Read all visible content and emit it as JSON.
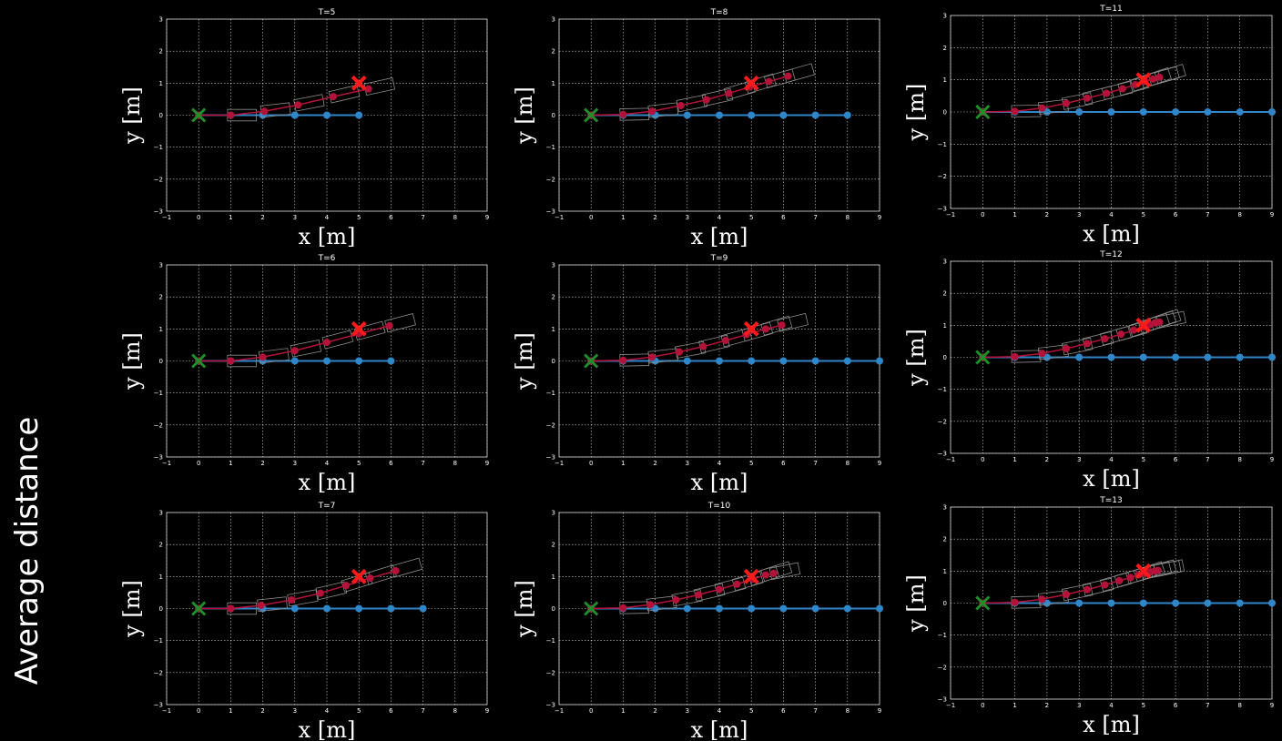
{
  "side_label": "Average distance",
  "colors": {
    "background": "#000000",
    "path": "#2f86c8",
    "trajectory": "#b5123a",
    "target": "#ff1a1a",
    "start": "#1f8f2a",
    "grid": "#ffffff",
    "boxes": "#8a8a8a"
  },
  "chart_data": [
    {
      "type": "line",
      "title": "T=5",
      "xlabel": "x [m]",
      "ylabel": "y [m]",
      "xlim": [
        -1,
        9
      ],
      "ylim": [
        -3,
        3
      ],
      "xticks": [
        "−1",
        "0",
        "1",
        "2",
        "3",
        "4",
        "5",
        "6",
        "7",
        "8",
        "9"
      ],
      "yticks": [
        "−3",
        "−2",
        "−1",
        "0",
        "1",
        "2",
        "3"
      ],
      "grid": true,
      "series": [
        {
          "values": [
            [
              0,
              0
            ],
            [
              1,
              0
            ],
            [
              2,
              0
            ],
            [
              3,
              0
            ],
            [
              4,
              0
            ],
            [
              5,
              0
            ]
          ]
        },
        {
          "values": [
            [
              0,
              0
            ],
            [
              1,
              0
            ],
            [
              2.05,
              0.12
            ],
            [
              3.1,
              0.32
            ],
            [
              4.2,
              0.58
            ],
            [
              5.3,
              0.82
            ]
          ]
        }
      ],
      "target": [
        5,
        1
      ],
      "start": [
        0,
        0
      ]
    },
    {
      "type": "line",
      "title": "T=6",
      "xlabel": "x [m]",
      "ylabel": "y [m]",
      "xlim": [
        -1,
        9
      ],
      "ylim": [
        -3,
        3
      ],
      "xticks": [
        "−1",
        "0",
        "1",
        "2",
        "3",
        "4",
        "5",
        "6",
        "7",
        "8",
        "9"
      ],
      "yticks": [
        "−3",
        "−2",
        "−1",
        "0",
        "1",
        "2",
        "3"
      ],
      "grid": true,
      "series": [
        {
          "values": [
            [
              0,
              0
            ],
            [
              1,
              0
            ],
            [
              2,
              0
            ],
            [
              3,
              0
            ],
            [
              4,
              0
            ],
            [
              5,
              0
            ],
            [
              6,
              0
            ]
          ]
        },
        {
          "values": [
            [
              0,
              0
            ],
            [
              1,
              0
            ],
            [
              2,
              0.12
            ],
            [
              3,
              0.32
            ],
            [
              4,
              0.58
            ],
            [
              5,
              0.85
            ],
            [
              5.95,
              1.1
            ]
          ]
        }
      ],
      "target": [
        5,
        1
      ],
      "start": [
        0,
        0
      ]
    },
    {
      "type": "line",
      "title": "T=7",
      "xlabel": "x [m]",
      "ylabel": "y [m]",
      "xlim": [
        -1,
        9
      ],
      "ylim": [
        -3,
        3
      ],
      "xticks": [
        "−1",
        "0",
        "1",
        "2",
        "3",
        "4",
        "5",
        "6",
        "7",
        "8",
        "9"
      ],
      "yticks": [
        "−3",
        "−2",
        "−1",
        "0",
        "1",
        "2",
        "3"
      ],
      "grid": true,
      "series": [
        {
          "values": [
            [
              0,
              0
            ],
            [
              1,
              0
            ],
            [
              2,
              0
            ],
            [
              3,
              0
            ],
            [
              4,
              0
            ],
            [
              5,
              0
            ],
            [
              6,
              0
            ],
            [
              7,
              0
            ]
          ]
        },
        {
          "values": [
            [
              0,
              0
            ],
            [
              1,
              0
            ],
            [
              1.95,
              0.1
            ],
            [
              2.9,
              0.27
            ],
            [
              3.8,
              0.48
            ],
            [
              4.6,
              0.72
            ],
            [
              5.35,
              0.95
            ],
            [
              6.15,
              1.18
            ]
          ]
        }
      ],
      "target": [
        5,
        1
      ],
      "start": [
        0,
        0
      ]
    },
    {
      "type": "line",
      "title": "T=8",
      "xlabel": "x [m]",
      "ylabel": "y [m]",
      "xlim": [
        -1,
        9
      ],
      "ylim": [
        -3,
        3
      ],
      "xticks": [
        "−1",
        "0",
        "1",
        "2",
        "3",
        "4",
        "5",
        "6",
        "7",
        "8",
        "9"
      ],
      "yticks": [
        "−3",
        "−2",
        "−1",
        "0",
        "1",
        "2",
        "3"
      ],
      "grid": true,
      "series": [
        {
          "values": [
            [
              0,
              0
            ],
            [
              1,
              0
            ],
            [
              2,
              0
            ],
            [
              3,
              0
            ],
            [
              4,
              0
            ],
            [
              5,
              0
            ],
            [
              6,
              0
            ],
            [
              7,
              0
            ],
            [
              8,
              0
            ]
          ]
        },
        {
          "values": [
            [
              0,
              0
            ],
            [
              1,
              0.02
            ],
            [
              1.9,
              0.12
            ],
            [
              2.8,
              0.3
            ],
            [
              3.6,
              0.48
            ],
            [
              4.3,
              0.68
            ],
            [
              4.95,
              0.88
            ],
            [
              5.55,
              1.05
            ],
            [
              6.15,
              1.22
            ]
          ]
        }
      ],
      "target": [
        5,
        1
      ],
      "start": [
        0,
        0
      ]
    },
    {
      "type": "line",
      "title": "T=9",
      "xlabel": "x [m]",
      "ylabel": "y [m]",
      "xlim": [
        -1,
        9
      ],
      "ylim": [
        -3,
        3
      ],
      "xticks": [
        "−1",
        "0",
        "1",
        "2",
        "3",
        "4",
        "5",
        "6",
        "7",
        "8",
        "9"
      ],
      "yticks": [
        "−3",
        "−2",
        "−1",
        "0",
        "1",
        "2",
        "3"
      ],
      "grid": true,
      "series": [
        {
          "values": [
            [
              0,
              0
            ],
            [
              1,
              0
            ],
            [
              2,
              0
            ],
            [
              3,
              0
            ],
            [
              4,
              0
            ],
            [
              5,
              0
            ],
            [
              6,
              0
            ],
            [
              7,
              0
            ],
            [
              8,
              0
            ],
            [
              9,
              0
            ]
          ]
        },
        {
          "values": [
            [
              0,
              0
            ],
            [
              1,
              0.02
            ],
            [
              1.9,
              0.12
            ],
            [
              2.75,
              0.28
            ],
            [
              3.5,
              0.45
            ],
            [
              4.2,
              0.64
            ],
            [
              4.85,
              0.82
            ],
            [
              5.45,
              1.0
            ],
            [
              5.95,
              1.12
            ]
          ]
        }
      ],
      "target": [
        5,
        1
      ],
      "start": [
        0,
        0
      ]
    },
    {
      "type": "line",
      "title": "T=10",
      "xlabel": "x [m]",
      "ylabel": "y [m]",
      "xlim": [
        -1,
        9
      ],
      "ylim": [
        -3,
        3
      ],
      "xticks": [
        "−1",
        "0",
        "1",
        "2",
        "3",
        "4",
        "5",
        "6",
        "7",
        "8",
        "9"
      ],
      "yticks": [
        "−3",
        "−2",
        "−1",
        "0",
        "1",
        "2",
        "3"
      ],
      "grid": true,
      "series": [
        {
          "values": [
            [
              0,
              0
            ],
            [
              1,
              0
            ],
            [
              2,
              0
            ],
            [
              3,
              0
            ],
            [
              4,
              0
            ],
            [
              5,
              0
            ],
            [
              6,
              0
            ],
            [
              7,
              0
            ],
            [
              8,
              0
            ],
            [
              9,
              0
            ]
          ]
        },
        {
          "values": [
            [
              0,
              0
            ],
            [
              1,
              0.02
            ],
            [
              1.85,
              0.12
            ],
            [
              2.65,
              0.27
            ],
            [
              3.35,
              0.43
            ],
            [
              4.0,
              0.6
            ],
            [
              4.55,
              0.76
            ],
            [
              5.05,
              0.92
            ],
            [
              5.45,
              1.05
            ],
            [
              5.7,
              1.1
            ]
          ]
        }
      ],
      "target": [
        5,
        1
      ],
      "start": [
        0,
        0
      ]
    },
    {
      "type": "line",
      "title": "T=11",
      "xlabel": "x [m]",
      "ylabel": "y [m]",
      "xlim": [
        -1,
        9
      ],
      "ylim": [
        -3,
        3
      ],
      "xticks": [
        "−1",
        "0",
        "1",
        "2",
        "3",
        "4",
        "5",
        "6",
        "7",
        "8",
        "9"
      ],
      "yticks": [
        "−3",
        "−2",
        "−1",
        "0",
        "1",
        "2",
        "3"
      ],
      "grid": true,
      "series": [
        {
          "values": [
            [
              0,
              0
            ],
            [
              1,
              0
            ],
            [
              2,
              0
            ],
            [
              3,
              0
            ],
            [
              4,
              0
            ],
            [
              5,
              0
            ],
            [
              6,
              0
            ],
            [
              7,
              0
            ],
            [
              8,
              0
            ],
            [
              9,
              0
            ]
          ]
        },
        {
          "values": [
            [
              0,
              0
            ],
            [
              1,
              0.02
            ],
            [
              1.85,
              0.12
            ],
            [
              2.6,
              0.27
            ],
            [
              3.25,
              0.43
            ],
            [
              3.85,
              0.58
            ],
            [
              4.35,
              0.72
            ],
            [
              4.75,
              0.85
            ],
            [
              5.05,
              0.95
            ],
            [
              5.3,
              1.02
            ],
            [
              5.5,
              1.08
            ]
          ]
        }
      ],
      "target": [
        5,
        1
      ],
      "start": [
        0,
        0
      ]
    },
    {
      "type": "line",
      "title": "T=12",
      "xlabel": "x [m]",
      "ylabel": "y [m]",
      "xlim": [
        -1,
        9
      ],
      "ylim": [
        -3,
        3
      ],
      "xticks": [
        "−1",
        "0",
        "1",
        "2",
        "3",
        "4",
        "5",
        "6",
        "7",
        "8",
        "9"
      ],
      "yticks": [
        "−3",
        "−2",
        "−1",
        "0",
        "1",
        "2",
        "3"
      ],
      "grid": true,
      "series": [
        {
          "values": [
            [
              0,
              0
            ],
            [
              1,
              0
            ],
            [
              2,
              0
            ],
            [
              3,
              0
            ],
            [
              4,
              0
            ],
            [
              5,
              0
            ],
            [
              6,
              0
            ],
            [
              7,
              0
            ],
            [
              8,
              0
            ],
            [
              9,
              0
            ]
          ]
        },
        {
          "values": [
            [
              0,
              0
            ],
            [
              1,
              0.02
            ],
            [
              1.85,
              0.12
            ],
            [
              2.6,
              0.27
            ],
            [
              3.25,
              0.43
            ],
            [
              3.8,
              0.58
            ],
            [
              4.3,
              0.72
            ],
            [
              4.7,
              0.85
            ],
            [
              5.0,
              0.95
            ],
            [
              5.2,
              1.02
            ],
            [
              5.35,
              1.07
            ],
            [
              5.5,
              1.1
            ]
          ]
        }
      ],
      "target": [
        5,
        1
      ],
      "start": [
        0,
        0
      ]
    },
    {
      "type": "line",
      "title": "T=13",
      "xlabel": "x [m]",
      "ylabel": "y [m]",
      "xlim": [
        -1,
        9
      ],
      "ylim": [
        -3,
        3
      ],
      "xticks": [
        "−1",
        "0",
        "1",
        "2",
        "3",
        "4",
        "5",
        "6",
        "7",
        "8",
        "9"
      ],
      "yticks": [
        "−3",
        "−2",
        "−1",
        "0",
        "1",
        "2",
        "3"
      ],
      "grid": true,
      "series": [
        {
          "values": [
            [
              0,
              0
            ],
            [
              1,
              0
            ],
            [
              2,
              0
            ],
            [
              3,
              0
            ],
            [
              4,
              0
            ],
            [
              5,
              0
            ],
            [
              6,
              0
            ],
            [
              7,
              0
            ],
            [
              8,
              0
            ],
            [
              9,
              0
            ]
          ]
        },
        {
          "values": [
            [
              0,
              0
            ],
            [
              1,
              0.02
            ],
            [
              1.85,
              0.12
            ],
            [
              2.6,
              0.27
            ],
            [
              3.25,
              0.42
            ],
            [
              3.8,
              0.57
            ],
            [
              4.25,
              0.7
            ],
            [
              4.6,
              0.8
            ],
            [
              4.85,
              0.88
            ],
            [
              5.05,
              0.93
            ],
            [
              5.2,
              0.97
            ],
            [
              5.35,
              1.0
            ],
            [
              5.45,
              1.02
            ]
          ]
        }
      ],
      "target": [
        5,
        1
      ],
      "start": [
        0,
        0
      ]
    }
  ]
}
